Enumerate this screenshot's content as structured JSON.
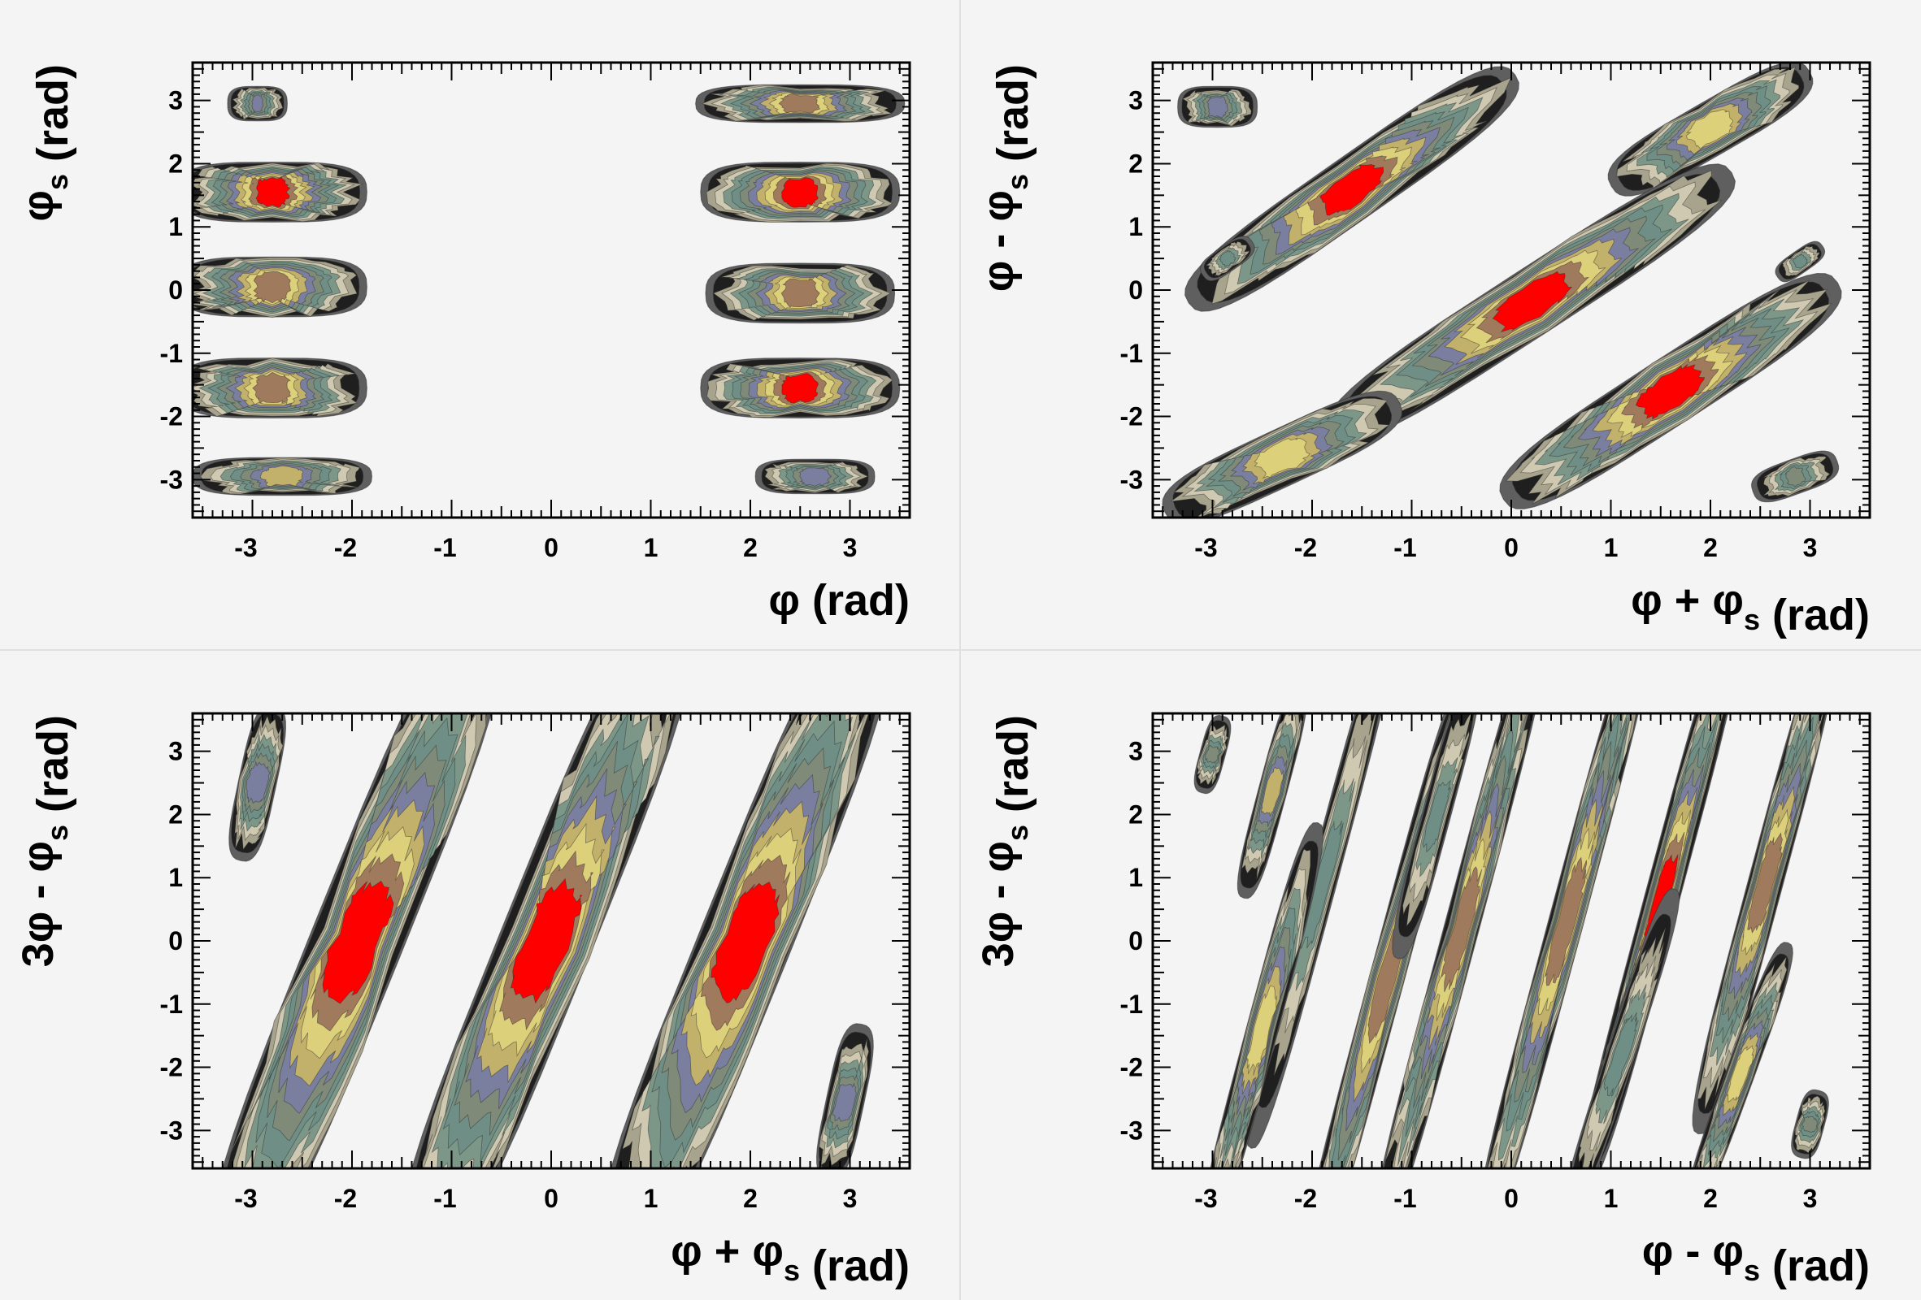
{
  "chart_data": [
    {
      "type": "contour",
      "xlabel": "φ (rad)",
      "ylabel": "φ_s (rad)",
      "xlim": [
        -3.6,
        3.6
      ],
      "ylim": [
        -3.6,
        3.6
      ],
      "x_ticks": [
        "-3",
        "-2",
        "-1",
        "0",
        "1",
        "2",
        "3"
      ],
      "y_ticks": [
        "-3",
        "-2",
        "-1",
        "0",
        "1",
        "2",
        "3"
      ],
      "islands": [
        {
          "x": -2.95,
          "y": 2.95,
          "len": 0.6,
          "wid": 0.55,
          "angle": 0,
          "peak": 0.45
        },
        {
          "x": -2.8,
          "y": 1.55,
          "len": 1.9,
          "wid": 0.95,
          "angle": 0,
          "peak": 1.0
        },
        {
          "x": -2.8,
          "y": 0.05,
          "len": 1.9,
          "wid": 0.95,
          "angle": 0,
          "peak": 0.9
        },
        {
          "x": -2.8,
          "y": -1.55,
          "len": 1.9,
          "wid": 0.95,
          "angle": 0,
          "peak": 0.9
        },
        {
          "x": -2.7,
          "y": -2.95,
          "len": 1.8,
          "wid": 0.6,
          "angle": 0,
          "peak": 0.6
        },
        {
          "x": 2.5,
          "y": 2.95,
          "len": 2.1,
          "wid": 0.6,
          "angle": 0,
          "peak": 0.85
        },
        {
          "x": 2.5,
          "y": 1.55,
          "len": 2.0,
          "wid": 0.95,
          "angle": 0,
          "peak": 1.0
        },
        {
          "x": 2.5,
          "y": -0.05,
          "len": 1.9,
          "wid": 0.95,
          "angle": 0,
          "peak": 0.9
        },
        {
          "x": 2.5,
          "y": -1.55,
          "len": 2.0,
          "wid": 0.95,
          "angle": 0,
          "peak": 1.0
        },
        {
          "x": 2.65,
          "y": -2.95,
          "len": 1.2,
          "wid": 0.55,
          "angle": 0,
          "peak": 0.5
        }
      ]
    },
    {
      "type": "contour",
      "xlabel": "φ + φ_s (rad)",
      "ylabel": "φ - φ_s (rad)",
      "xlim": [
        -3.6,
        3.6
      ],
      "ylim": [
        -3.6,
        3.6
      ],
      "x_ticks": [
        "-3",
        "-2",
        "-1",
        "0",
        "1",
        "2",
        "3"
      ],
      "y_ticks": [
        "-3",
        "-2",
        "-1",
        "0",
        "1",
        "2",
        "3"
      ],
      "islands": [
        {
          "x": -2.95,
          "y": 2.9,
          "len": 0.8,
          "wid": 0.65,
          "angle": 0,
          "peak": 0.5
        },
        {
          "x": -1.6,
          "y": 1.6,
          "len": 4.0,
          "wid": 1.0,
          "angle": 35,
          "peak": 1.0
        },
        {
          "x": 2.0,
          "y": 2.55,
          "len": 2.3,
          "wid": 0.85,
          "angle": 30,
          "peak": 0.8
        },
        {
          "x": -2.85,
          "y": 0.5,
          "len": 0.6,
          "wid": 0.4,
          "angle": 35,
          "peak": 0.3
        },
        {
          "x": 0.2,
          "y": -0.2,
          "len": 4.8,
          "wid": 1.05,
          "angle": 33,
          "peak": 1.0
        },
        {
          "x": 2.9,
          "y": 0.45,
          "len": 0.55,
          "wid": 0.35,
          "angle": 35,
          "peak": 0.3
        },
        {
          "x": -2.3,
          "y": -2.65,
          "len": 2.6,
          "wid": 0.9,
          "angle": 25,
          "peak": 0.8
        },
        {
          "x": 1.6,
          "y": -1.6,
          "len": 4.0,
          "wid": 1.05,
          "angle": 33,
          "peak": 1.0
        },
        {
          "x": 2.85,
          "y": -2.95,
          "len": 0.9,
          "wid": 0.55,
          "angle": 20,
          "peak": 0.4
        }
      ]
    },
    {
      "type": "contour",
      "xlabel": "φ + φ_s (rad)",
      "ylabel": "3φ - φ_s (rad)",
      "xlim": [
        -3.6,
        3.6
      ],
      "ylim": [
        -3.6,
        3.6
      ],
      "x_ticks": [
        "-3",
        "-2",
        "-1",
        "0",
        "1",
        "2",
        "3"
      ],
      "y_ticks": [
        "-3",
        "-2",
        "-1",
        "0",
        "1",
        "2",
        "3"
      ],
      "islands": [
        {
          "x": -2.95,
          "y": 2.5,
          "len": 1.6,
          "wid": 0.6,
          "angle": 78,
          "peak": 0.5
        },
        {
          "x": -1.95,
          "y": 0.0,
          "len": 7.0,
          "wid": 1.45,
          "angle": 68,
          "peak": 1.0
        },
        {
          "x": -0.05,
          "y": 0.0,
          "len": 7.0,
          "wid": 1.45,
          "angle": 68,
          "peak": 1.0
        },
        {
          "x": 1.95,
          "y": 0.0,
          "len": 7.0,
          "wid": 1.45,
          "angle": 68,
          "peak": 1.0
        },
        {
          "x": 2.95,
          "y": -2.55,
          "len": 1.6,
          "wid": 0.6,
          "angle": 78,
          "peak": 0.5
        }
      ]
    },
    {
      "type": "contour",
      "xlabel": "φ - φ_s (rad)",
      "ylabel": "3φ - φ_s (rad)",
      "xlim": [
        -3.6,
        3.6
      ],
      "ylim": [
        -3.6,
        3.6
      ],
      "x_ticks": [
        "-3",
        "-2",
        "-1",
        "0",
        "1",
        "2",
        "3"
      ],
      "y_ticks": [
        "-3",
        "-2",
        "-1",
        "0",
        "1",
        "2",
        "3"
      ],
      "islands": [
        {
          "x": -3.0,
          "y": 2.95,
          "len": 0.8,
          "wid": 0.4,
          "angle": 75,
          "peak": 0.4
        },
        {
          "x": -2.4,
          "y": 2.35,
          "len": 2.2,
          "wid": 0.45,
          "angle": 75,
          "peak": 0.6
        },
        {
          "x": -1.9,
          "y": 0.9,
          "len": 5.5,
          "wid": 0.45,
          "angle": 75,
          "peak": 0.25
        },
        {
          "x": -2.5,
          "y": -1.4,
          "len": 4.3,
          "wid": 0.5,
          "angle": 75,
          "peak": 0.7
        },
        {
          "x": -1.25,
          "y": -0.6,
          "len": 6.5,
          "wid": 0.55,
          "angle": 75,
          "peak": 0.9
        },
        {
          "x": -0.5,
          "y": 0.2,
          "len": 6.5,
          "wid": 0.55,
          "angle": 75,
          "peak": 0.9
        },
        {
          "x": -0.75,
          "y": 2.0,
          "len": 3.0,
          "wid": 0.45,
          "angle": 75,
          "peak": 0.25
        },
        {
          "x": 0.55,
          "y": 0.3,
          "len": 6.6,
          "wid": 0.55,
          "angle": 75,
          "peak": 0.9
        },
        {
          "x": 1.5,
          "y": 0.6,
          "len": 6.0,
          "wid": 0.55,
          "angle": 75,
          "peak": 1.0
        },
        {
          "x": 2.55,
          "y": 0.9,
          "len": 5.2,
          "wid": 0.55,
          "angle": 75,
          "peak": 0.9
        },
        {
          "x": 1.1,
          "y": -1.8,
          "len": 3.5,
          "wid": 0.45,
          "angle": 72,
          "peak": 0.25
        },
        {
          "x": 2.3,
          "y": -2.1,
          "len": 2.8,
          "wid": 0.45,
          "angle": 70,
          "peak": 0.7
        },
        {
          "x": 3.0,
          "y": -2.9,
          "len": 0.7,
          "wid": 0.45,
          "angle": 75,
          "peak": 0.4
        }
      ]
    }
  ],
  "palette": [
    "#5f5f5f",
    "#1f1f1f",
    "#a8a38c",
    "#cfc9b2",
    "#7c9688",
    "#6f8f86",
    "#7a7fa0",
    "#7f8b78",
    "#c2b16b",
    "#dcd07a",
    "#a07a5c",
    "#ff0000",
    "#ff00ff",
    "#1f1f1f",
    "#00ff44"
  ]
}
